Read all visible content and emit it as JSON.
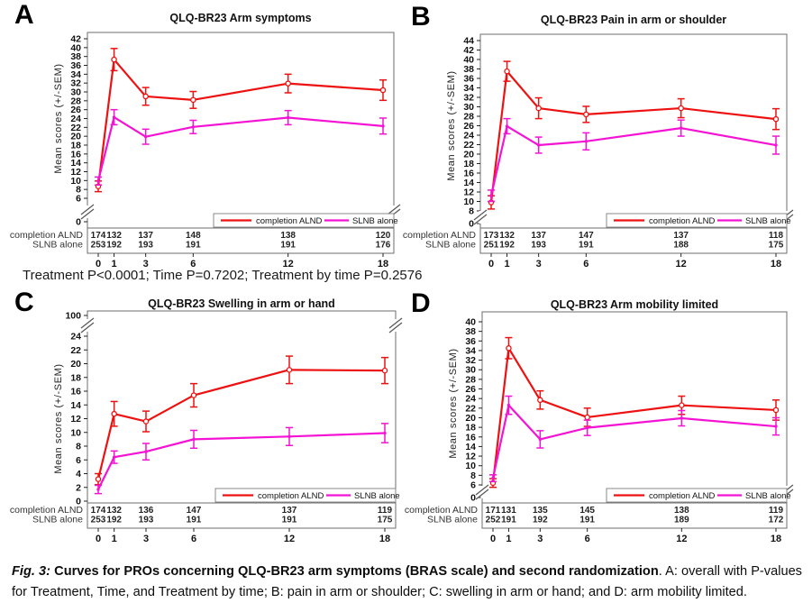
{
  "figure": {
    "caption_fig": "Fig. 3:",
    "caption_bold": " Curves for PROs concerning QLQ-BR23 arm symptoms (BRAS scale) and second randomization",
    "caption_rest": ". A: overall with P-values for Treatment, Time, and Treatment by time; B: pain in arm or shoulder; C: swelling in arm or hand; and D: arm mobility limited."
  },
  "colors": {
    "alnd": "#ee1111",
    "slnb": "#f413d4"
  },
  "panels": [
    {
      "letter": "A",
      "p_text": "Treatment P<0.0001; Time P=0.7202; Treatment by time P=0.2576"
    },
    {
      "letter": "B",
      "p_text": ""
    },
    {
      "letter": "C",
      "p_text": ""
    },
    {
      "letter": "D",
      "p_text": ""
    }
  ],
  "chart_data": [
    {
      "type": "line",
      "title": "QLQ-BR23 Arm symptoms",
      "xlabel": "",
      "ylabel": "Mean scores (+/-SEM)",
      "x": [
        0,
        1,
        3,
        6,
        12,
        18
      ],
      "x_tick_labels": [
        "0",
        "1",
        "3",
        "6",
        "12",
        "18"
      ],
      "y_axis": {
        "tick_range": [
          6,
          42
        ],
        "tick_step": 2,
        "broken_tick": "0",
        "break_position": "bottom"
      },
      "legend": [
        "completion ALND",
        "SLNB alone"
      ],
      "series": [
        {
          "name": "completion ALND",
          "color_key": "alnd",
          "means": [
            8.7,
            37.3,
            29.0,
            28.2,
            31.9,
            30.4
          ],
          "sems": [
            1.2,
            2.5,
            2.0,
            1.9,
            2.1,
            2.3
          ]
        },
        {
          "name": "SLNB alone",
          "color_key": "slnb",
          "means": [
            9.9,
            24.3,
            19.9,
            22.1,
            24.2,
            22.3
          ],
          "sems": [
            0.9,
            1.7,
            1.7,
            1.5,
            1.6,
            1.8
          ]
        }
      ],
      "at_risk": {
        "rows": [
          {
            "label": "completion ALND",
            "values": [
              174,
              132,
              137,
              148,
              138,
              120
            ]
          },
          {
            "label": "SLNB alone",
            "values": [
              253,
              192,
              193,
              191,
              191,
              176
            ]
          }
        ]
      }
    },
    {
      "type": "line",
      "title": "QLQ-BR23 Pain in arm or shoulder",
      "xlabel": "",
      "ylabel": "Mean scores (+/-SEM)",
      "x": [
        0,
        1,
        3,
        6,
        12,
        18
      ],
      "x_tick_labels": [
        "0",
        "1",
        "3",
        "6",
        "12",
        "18"
      ],
      "y_axis": {
        "tick_range": [
          8,
          44
        ],
        "tick_step": 2,
        "broken_tick": "0",
        "break_position": "bottom"
      },
      "legend": [
        "completion ALND",
        "SLNB alone"
      ],
      "series": [
        {
          "name": "completion ALND",
          "color_key": "alnd",
          "means": [
            9.8,
            37.5,
            29.7,
            28.4,
            29.7,
            27.4
          ],
          "sems": [
            1.4,
            2.1,
            2.2,
            1.7,
            2.0,
            2.2
          ]
        },
        {
          "name": "SLNB alone",
          "color_key": "slnb",
          "means": [
            11.2,
            25.9,
            21.9,
            22.7,
            25.5,
            21.9
          ],
          "sems": [
            1.2,
            1.6,
            1.7,
            1.8,
            1.7,
            1.9
          ]
        }
      ],
      "at_risk": {
        "rows": [
          {
            "label": "completion ALND",
            "values": [
              173,
              132,
              137,
              147,
              137,
              118
            ]
          },
          {
            "label": "SLNB alone",
            "values": [
              251,
              192,
              193,
              191,
              188,
              175
            ]
          }
        ]
      }
    },
    {
      "type": "line",
      "title": "QLQ-BR23 Swelling in arm or hand",
      "xlabel": "",
      "ylabel": "Mean scores (+/-SEM)",
      "x": [
        0,
        1,
        3,
        6,
        12,
        18
      ],
      "x_tick_labels": [
        "0",
        "1",
        "3",
        "6",
        "12",
        "18"
      ],
      "y_axis": {
        "tick_range": [
          0,
          24
        ],
        "tick_step": 2,
        "broken_tick": "100",
        "break_position": "top"
      },
      "legend": [
        "completion ALND",
        "SLNB alone"
      ],
      "series": [
        {
          "name": "completion ALND",
          "color_key": "alnd",
          "means": [
            3.2,
            12.7,
            11.6,
            15.4,
            19.1,
            19.0
          ],
          "sems": [
            0.8,
            1.8,
            1.5,
            1.7,
            2.0,
            1.9
          ]
        },
        {
          "name": "SLNB alone",
          "color_key": "slnb",
          "means": [
            1.7,
            6.4,
            7.2,
            9.0,
            9.4,
            9.9
          ],
          "sems": [
            0.6,
            0.9,
            1.2,
            1.3,
            1.3,
            1.4
          ]
        }
      ],
      "at_risk": {
        "rows": [
          {
            "label": "completion ALND",
            "values": [
              174,
              132,
              136,
              147,
              137,
              119
            ]
          },
          {
            "label": "SLNB alone",
            "values": [
              253,
              192,
              193,
              191,
              191,
              175
            ]
          }
        ]
      }
    },
    {
      "type": "line",
      "title": "QLQ-BR23 Arm mobility limited",
      "xlabel": "",
      "ylabel": "Mean scores (+/-SEM)",
      "x": [
        0,
        1,
        3,
        6,
        12,
        18
      ],
      "x_tick_labels": [
        "0",
        "1",
        "3",
        "6",
        "12",
        "18"
      ],
      "y_axis": {
        "tick_range": [
          6,
          40
        ],
        "tick_step": 2,
        "broken_tick": "0",
        "break_position": "bottom"
      },
      "legend": [
        "completion ALND",
        "SLNB alone"
      ],
      "series": [
        {
          "name": "completion ALND",
          "color_key": "alnd",
          "means": [
            6.4,
            34.5,
            23.7,
            20.1,
            22.6,
            21.6
          ],
          "sems": [
            0.9,
            2.2,
            1.9,
            1.9,
            1.9,
            2.1
          ]
        },
        {
          "name": "SLNB alone",
          "color_key": "slnb",
          "means": [
            7.4,
            22.6,
            15.5,
            17.9,
            19.9,
            18.2
          ],
          "sems": [
            0.7,
            1.9,
            1.8,
            1.6,
            1.6,
            1.8
          ]
        }
      ],
      "at_risk": {
        "rows": [
          {
            "label": "completion ALND",
            "values": [
              171,
              131,
              135,
              145,
              138,
              119
            ]
          },
          {
            "label": "SLNB alone",
            "values": [
              252,
              191,
              192,
              191,
              189,
              172
            ]
          }
        ]
      }
    }
  ]
}
